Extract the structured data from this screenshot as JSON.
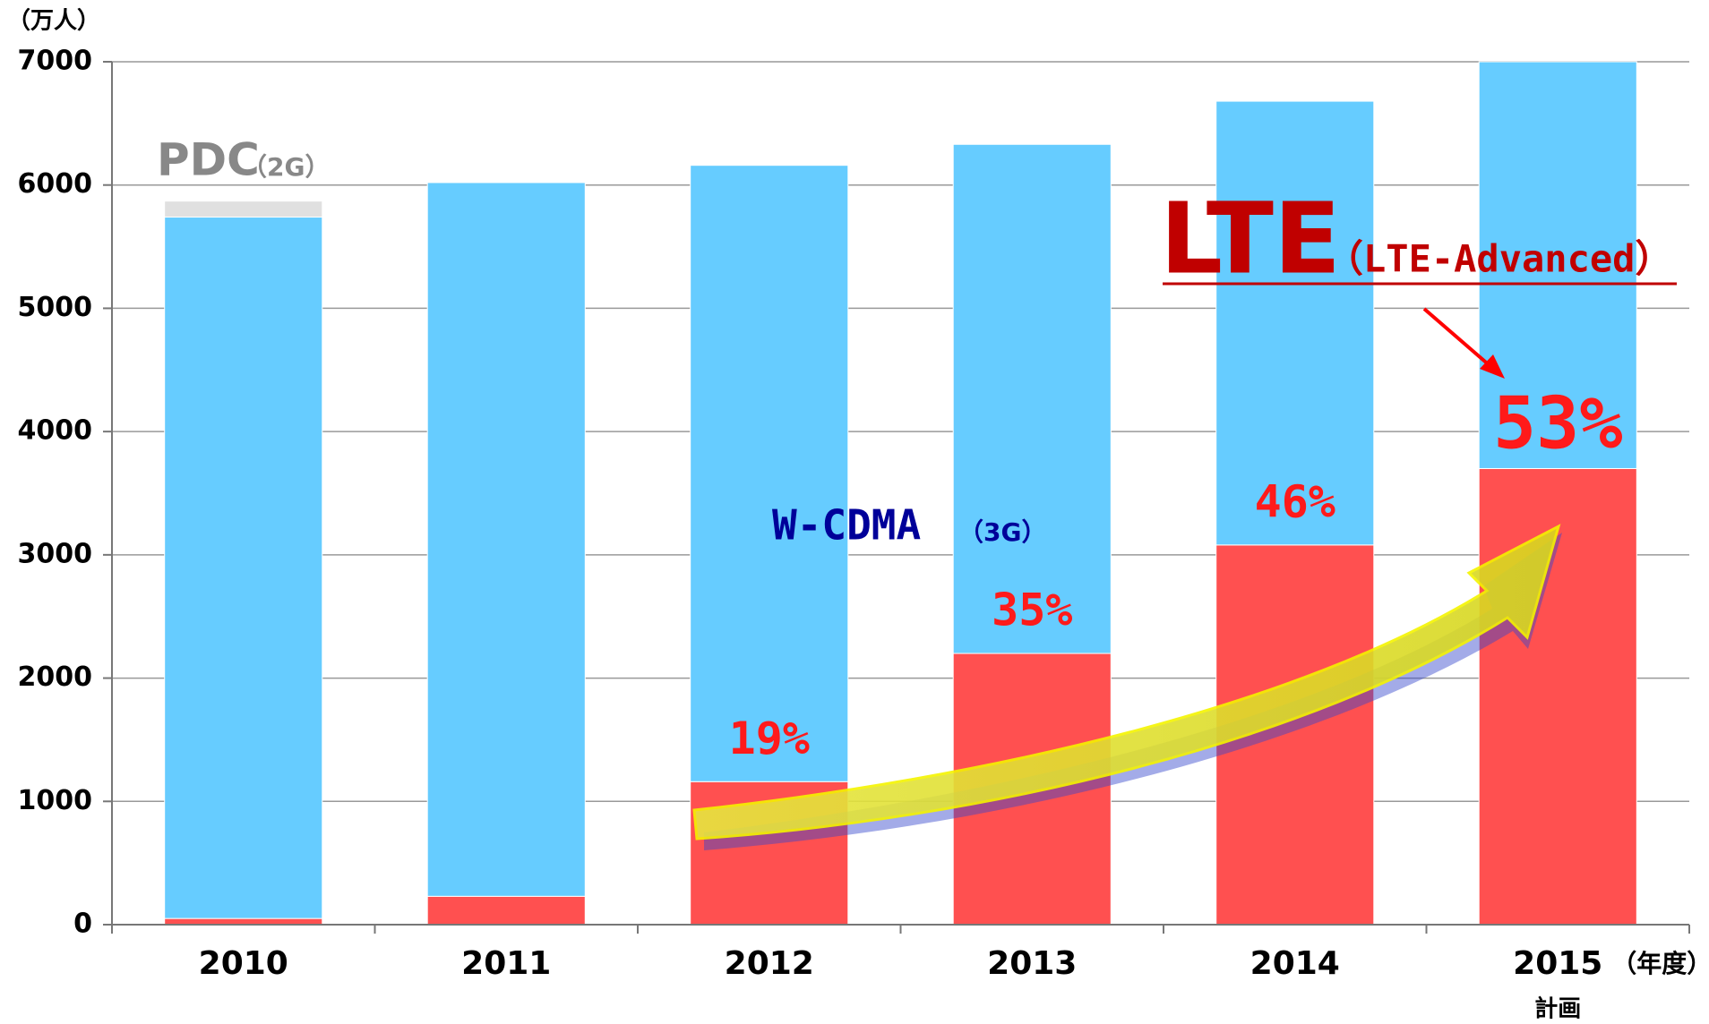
{
  "chart_data": {
    "type": "stacked_bar",
    "y_unit": "（万人）",
    "x_unit": "（年度）",
    "categories": [
      "2010",
      "2011",
      "2012",
      "2013",
      "2014",
      "2015"
    ],
    "category_notes": [
      null,
      null,
      null,
      null,
      null,
      "計画"
    ],
    "series": [
      {
        "name": "LTE",
        "name_note": "（LTE-Advanced）",
        "color": "#ff5050",
        "values": [
          50,
          230,
          1160,
          2200,
          3080,
          3700
        ]
      },
      {
        "name": "W-CDMA",
        "name_note": "（3G）",
        "color": "#66ccff",
        "values": [
          5690,
          5790,
          5000,
          4130,
          3600,
          3300
        ]
      },
      {
        "name": "PDC",
        "name_note": "（2G）",
        "color": "#e0e0e0",
        "values": [
          130,
          null,
          null,
          null,
          null,
          null
        ]
      }
    ],
    "share_labels": [
      null,
      null,
      "19%",
      "35%",
      "46%",
      "53%"
    ],
    "ylim": [
      0,
      7000
    ],
    "yticks": [
      0,
      1000,
      2000,
      3000,
      4000,
      5000,
      6000,
      7000
    ],
    "grid": true
  }
}
